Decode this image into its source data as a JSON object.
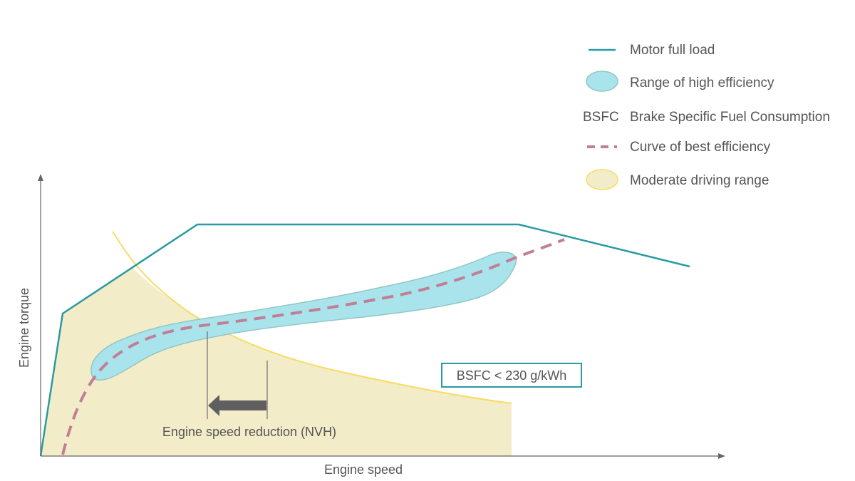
{
  "legend": {
    "full_load": "Motor full load",
    "high_efficiency": "Range of high efficiency",
    "bsfc_abbr": "BSFC",
    "bsfc_full": "Brake Specific Fuel Consumption",
    "best_efficiency": "Curve of best efficiency",
    "moderate_range": "Moderate driving range"
  },
  "axes": {
    "x_label": "Engine speed",
    "y_label": "Engine torque"
  },
  "annotations": {
    "bsfc_box": "BSFC < 230 g/kWh",
    "speed_reduction": "Engine speed reduction (NVH)"
  },
  "colors": {
    "full_load": "#2a9aa3",
    "high_efficiency_fill": "#a9e3ec",
    "high_efficiency_stroke": "#93c7c3",
    "best_efficiency": "#c07f96",
    "moderate_fill": "#f3ecc9",
    "moderate_stroke": "#f7dc63",
    "axis": "#666666",
    "arrow": "#5f5f5f"
  }
}
